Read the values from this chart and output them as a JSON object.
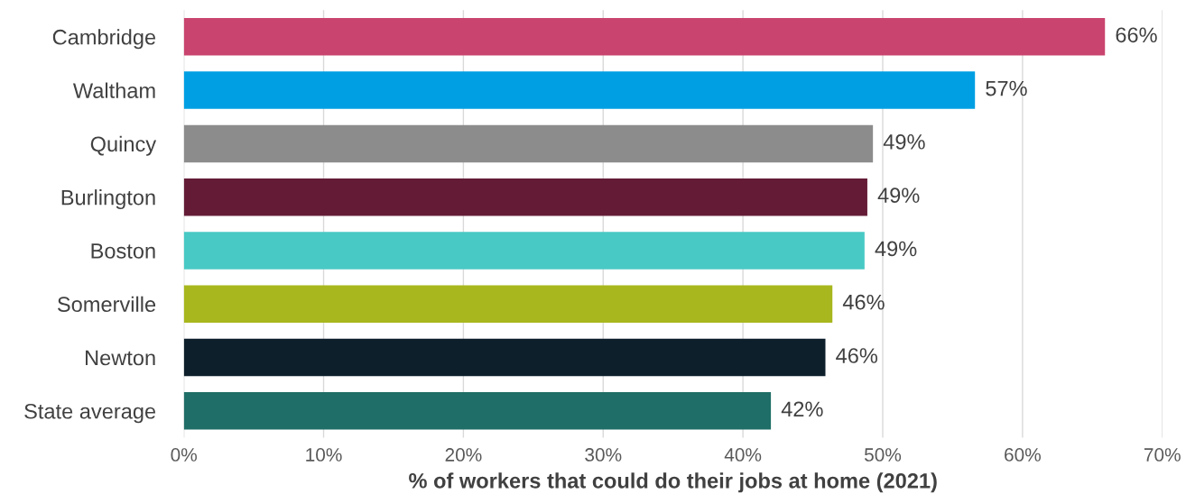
{
  "chart_data": {
    "type": "bar",
    "orientation": "horizontal",
    "xlabel": "% of workers that could do their jobs at home (2021)",
    "categories": [
      "Cambridge",
      "Waltham",
      "Quincy",
      "Burlington",
      "Boston",
      "Somerville",
      "Newton",
      "State average"
    ],
    "values": [
      65.9,
      56.6,
      49.3,
      48.9,
      48.7,
      46.4,
      45.9,
      42.0
    ],
    "value_labels": [
      "66%",
      "57%",
      "49%",
      "49%",
      "49%",
      "46%",
      "46%",
      "42%"
    ],
    "colors": [
      "#c9446e",
      "#009fe3",
      "#8c8c8c",
      "#641c36",
      "#48c9c5",
      "#a8b71d",
      "#0d1f2b",
      "#1f6e67"
    ],
    "xlim": [
      0,
      70
    ],
    "xticks": [
      {
        "value": 0,
        "label": "0%"
      },
      {
        "value": 10,
        "label": "10%"
      },
      {
        "value": 20,
        "label": "20%"
      },
      {
        "value": 30,
        "label": "30%"
      },
      {
        "value": 40,
        "label": "40%"
      },
      {
        "value": 50,
        "label": "50%"
      },
      {
        "value": 60,
        "label": "60%"
      },
      {
        "value": 70,
        "label": "70%"
      }
    ],
    "grid": "x"
  }
}
